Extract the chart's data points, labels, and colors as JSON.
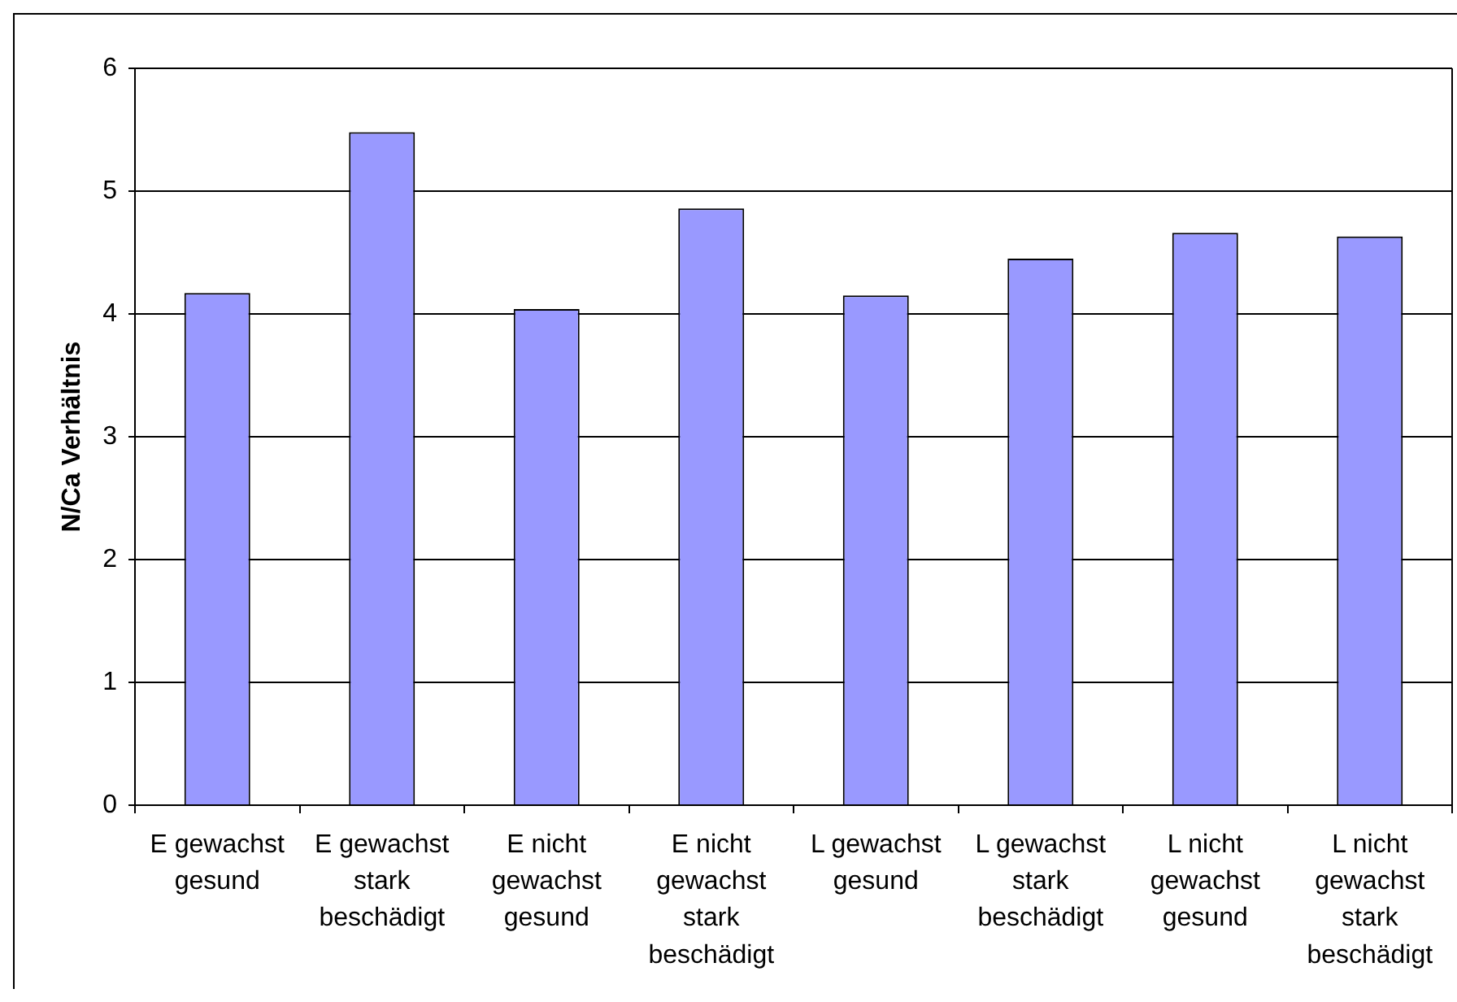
{
  "chart_data": {
    "type": "bar",
    "ylabel": "N/Ca Verhältnis",
    "categories": [
      "E gewachst gesund",
      "E gewachst stark beschädigt",
      "E nicht gewachst gesund",
      "E nicht gewachst stark beschädigt",
      "L gewachst gesund",
      "L gewachst stark beschädigt",
      "L nicht gewachst gesund",
      "L nicht gewachst stark beschädigt"
    ],
    "values": [
      4.17,
      5.48,
      4.04,
      4.86,
      4.15,
      4.45,
      4.66,
      4.63
    ],
    "color": "#9999ff",
    "ylim": [
      0,
      6
    ],
    "yticks": [
      0,
      1,
      2,
      3,
      4,
      5,
      6
    ],
    "grid": "y"
  }
}
